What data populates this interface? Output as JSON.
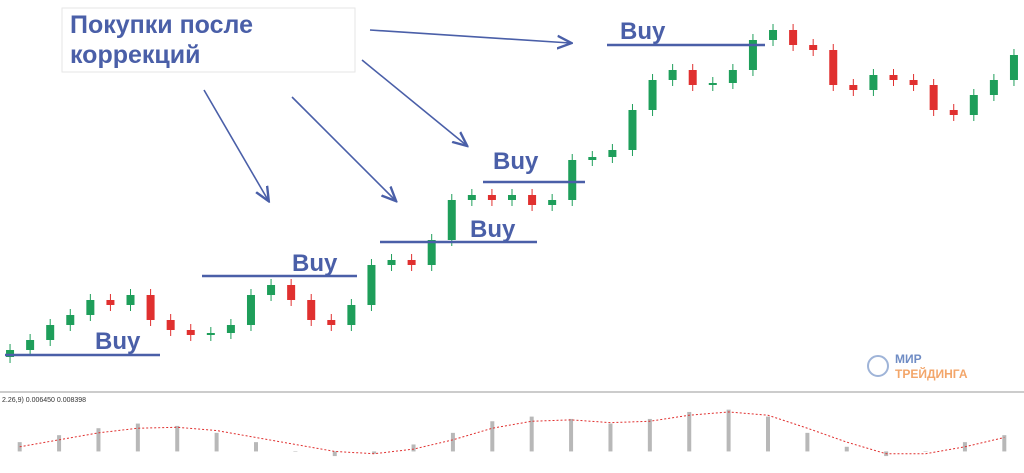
{
  "header": {
    "title": "Покупки после коррекций"
  },
  "annotations": [
    "Buy",
    "Buy",
    "Buy",
    "Buy",
    "Buy"
  ],
  "logo": {
    "line1": "МИР",
    "line2": "ТРЕЙДИНГА"
  },
  "chart_data": [
    {
      "type": "candlestick",
      "ylim": [
        0,
        392
      ],
      "up_color": "#1e9e5a",
      "down_color": "#e0302f",
      "open": [
        35,
        42,
        52,
        67,
        77,
        92,
        87,
        97,
        72,
        62,
        57,
        59,
        67,
        97,
        107,
        92,
        72,
        67,
        87,
        127,
        132,
        127,
        152,
        192,
        197,
        192,
        197,
        187,
        192,
        232,
        235,
        242,
        282,
        312,
        322,
        307,
        309,
        322,
        352,
        362,
        347,
        342,
        307,
        302,
        317,
        312,
        307,
        282,
        277,
        297,
        312
      ],
      "high": [
        48,
        58,
        73,
        83,
        98,
        98,
        103,
        103,
        78,
        68,
        65,
        73,
        103,
        113,
        113,
        98,
        78,
        93,
        133,
        138,
        138,
        158,
        198,
        203,
        203,
        203,
        203,
        198,
        238,
        241,
        248,
        288,
        318,
        328,
        328,
        315,
        328,
        358,
        368,
        368,
        353,
        348,
        313,
        323,
        323,
        318,
        313,
        288,
        303,
        318,
        343
      ],
      "low": [
        29,
        36,
        46,
        61,
        71,
        81,
        81,
        66,
        56,
        51,
        51,
        53,
        61,
        91,
        86,
        66,
        61,
        61,
        81,
        121,
        121,
        121,
        146,
        186,
        186,
        186,
        181,
        181,
        186,
        226,
        229,
        236,
        276,
        306,
        301,
        301,
        303,
        316,
        346,
        341,
        336,
        301,
        296,
        296,
        306,
        301,
        276,
        271,
        271,
        291,
        306
      ],
      "close": [
        42,
        52,
        67,
        77,
        92,
        87,
        97,
        72,
        62,
        57,
        59,
        67,
        97,
        107,
        92,
        72,
        67,
        87,
        127,
        132,
        127,
        152,
        192,
        197,
        192,
        197,
        187,
        192,
        232,
        235,
        242,
        282,
        312,
        322,
        307,
        309,
        322,
        352,
        362,
        347,
        342,
        307,
        302,
        317,
        312,
        307,
        282,
        277,
        297,
        312,
        337
      ]
    },
    {
      "type": "macd",
      "label": "2.26,9) 0.006450 0.008398",
      "ylim": [
        -0.4,
        1
      ],
      "bar_color": "#b8b8b8",
      "signal_color": "#e0302f",
      "values": [
        0.2,
        0.35,
        0.5,
        0.6,
        0.55,
        0.4,
        0.2,
        0.0,
        -0.1,
        -0.05,
        0.15,
        0.4,
        0.65,
        0.75,
        0.7,
        0.6,
        0.7,
        0.85,
        0.9,
        0.75,
        0.4,
        0.1,
        -0.1,
        0.0,
        0.2,
        0.35
      ],
      "signal": [
        0.1,
        0.25,
        0.4,
        0.5,
        0.52,
        0.45,
        0.3,
        0.15,
        0.0,
        -0.05,
        0.05,
        0.25,
        0.5,
        0.65,
        0.68,
        0.62,
        0.65,
        0.78,
        0.85,
        0.78,
        0.5,
        0.2,
        -0.05,
        -0.05,
        0.1,
        0.3
      ]
    }
  ]
}
